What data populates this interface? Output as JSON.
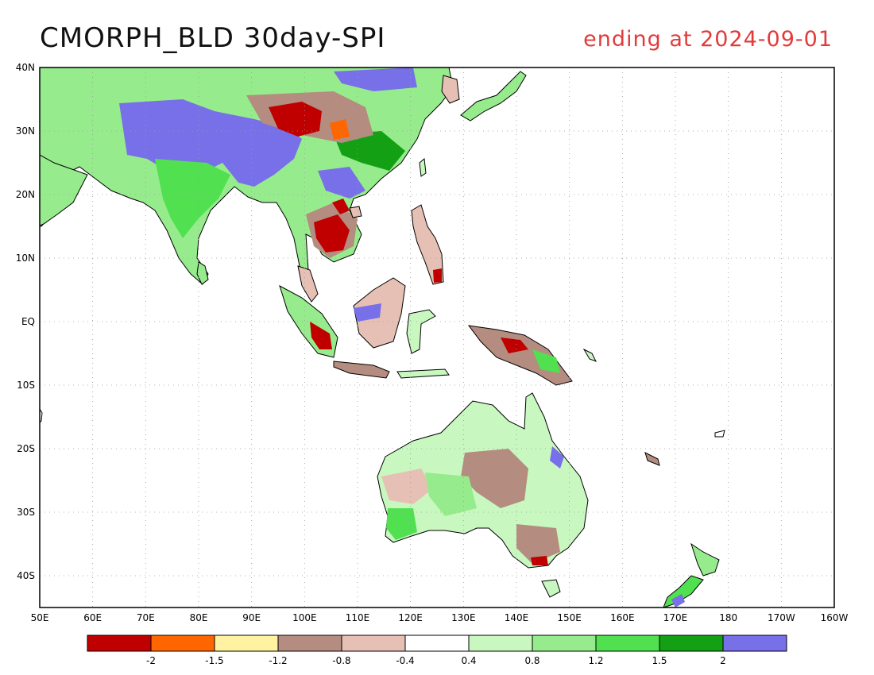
{
  "title": "CMORPH_BLD 30day-SPI",
  "subtitle": "ending at 2024-09-01",
  "map": {
    "lon_range": [
      50,
      200
    ],
    "lat_range": [
      -45,
      40
    ],
    "lat_ticks": [
      {
        "value": 40,
        "label": "40N"
      },
      {
        "value": 30,
        "label": "30N"
      },
      {
        "value": 20,
        "label": "20N"
      },
      {
        "value": 10,
        "label": "10N"
      },
      {
        "value": 0,
        "label": "EQ"
      },
      {
        "value": -10,
        "label": "10S"
      },
      {
        "value": -20,
        "label": "20S"
      },
      {
        "value": -30,
        "label": "30S"
      },
      {
        "value": -40,
        "label": "40S"
      }
    ],
    "lon_ticks": [
      {
        "value": 50,
        "label": "50E"
      },
      {
        "value": 60,
        "label": "60E"
      },
      {
        "value": 70,
        "label": "70E"
      },
      {
        "value": 80,
        "label": "80E"
      },
      {
        "value": 90,
        "label": "90E"
      },
      {
        "value": 100,
        "label": "100E"
      },
      {
        "value": 110,
        "label": "110E"
      },
      {
        "value": 120,
        "label": "120E"
      },
      {
        "value": 130,
        "label": "130E"
      },
      {
        "value": 140,
        "label": "140E"
      },
      {
        "value": 150,
        "label": "150E"
      },
      {
        "value": 160,
        "label": "160E"
      },
      {
        "value": 170,
        "label": "170E"
      },
      {
        "value": 180,
        "label": "180"
      },
      {
        "value": 190,
        "label": "170W"
      },
      {
        "value": 200,
        "label": "160W"
      }
    ],
    "grid": "dotted"
  },
  "legend": {
    "colors": [
      "#c00000",
      "#ff6600",
      "#fff2a0",
      "#b48c80",
      "#e6c0b4",
      "#ffffff",
      "#c8f8c0",
      "#96ec8c",
      "#50e050",
      "#14a014",
      "#7870e8"
    ],
    "labels": [
      "-2",
      "-1.5",
      "-1.2",
      "-0.8",
      "-0.4",
      "0.4",
      "0.8",
      "1.2",
      "1.5",
      "2"
    ]
  },
  "colors": {
    "subtitle": "#e23b3b",
    "wet_extreme": "#7870e8",
    "dry_extreme": "#c00000"
  }
}
